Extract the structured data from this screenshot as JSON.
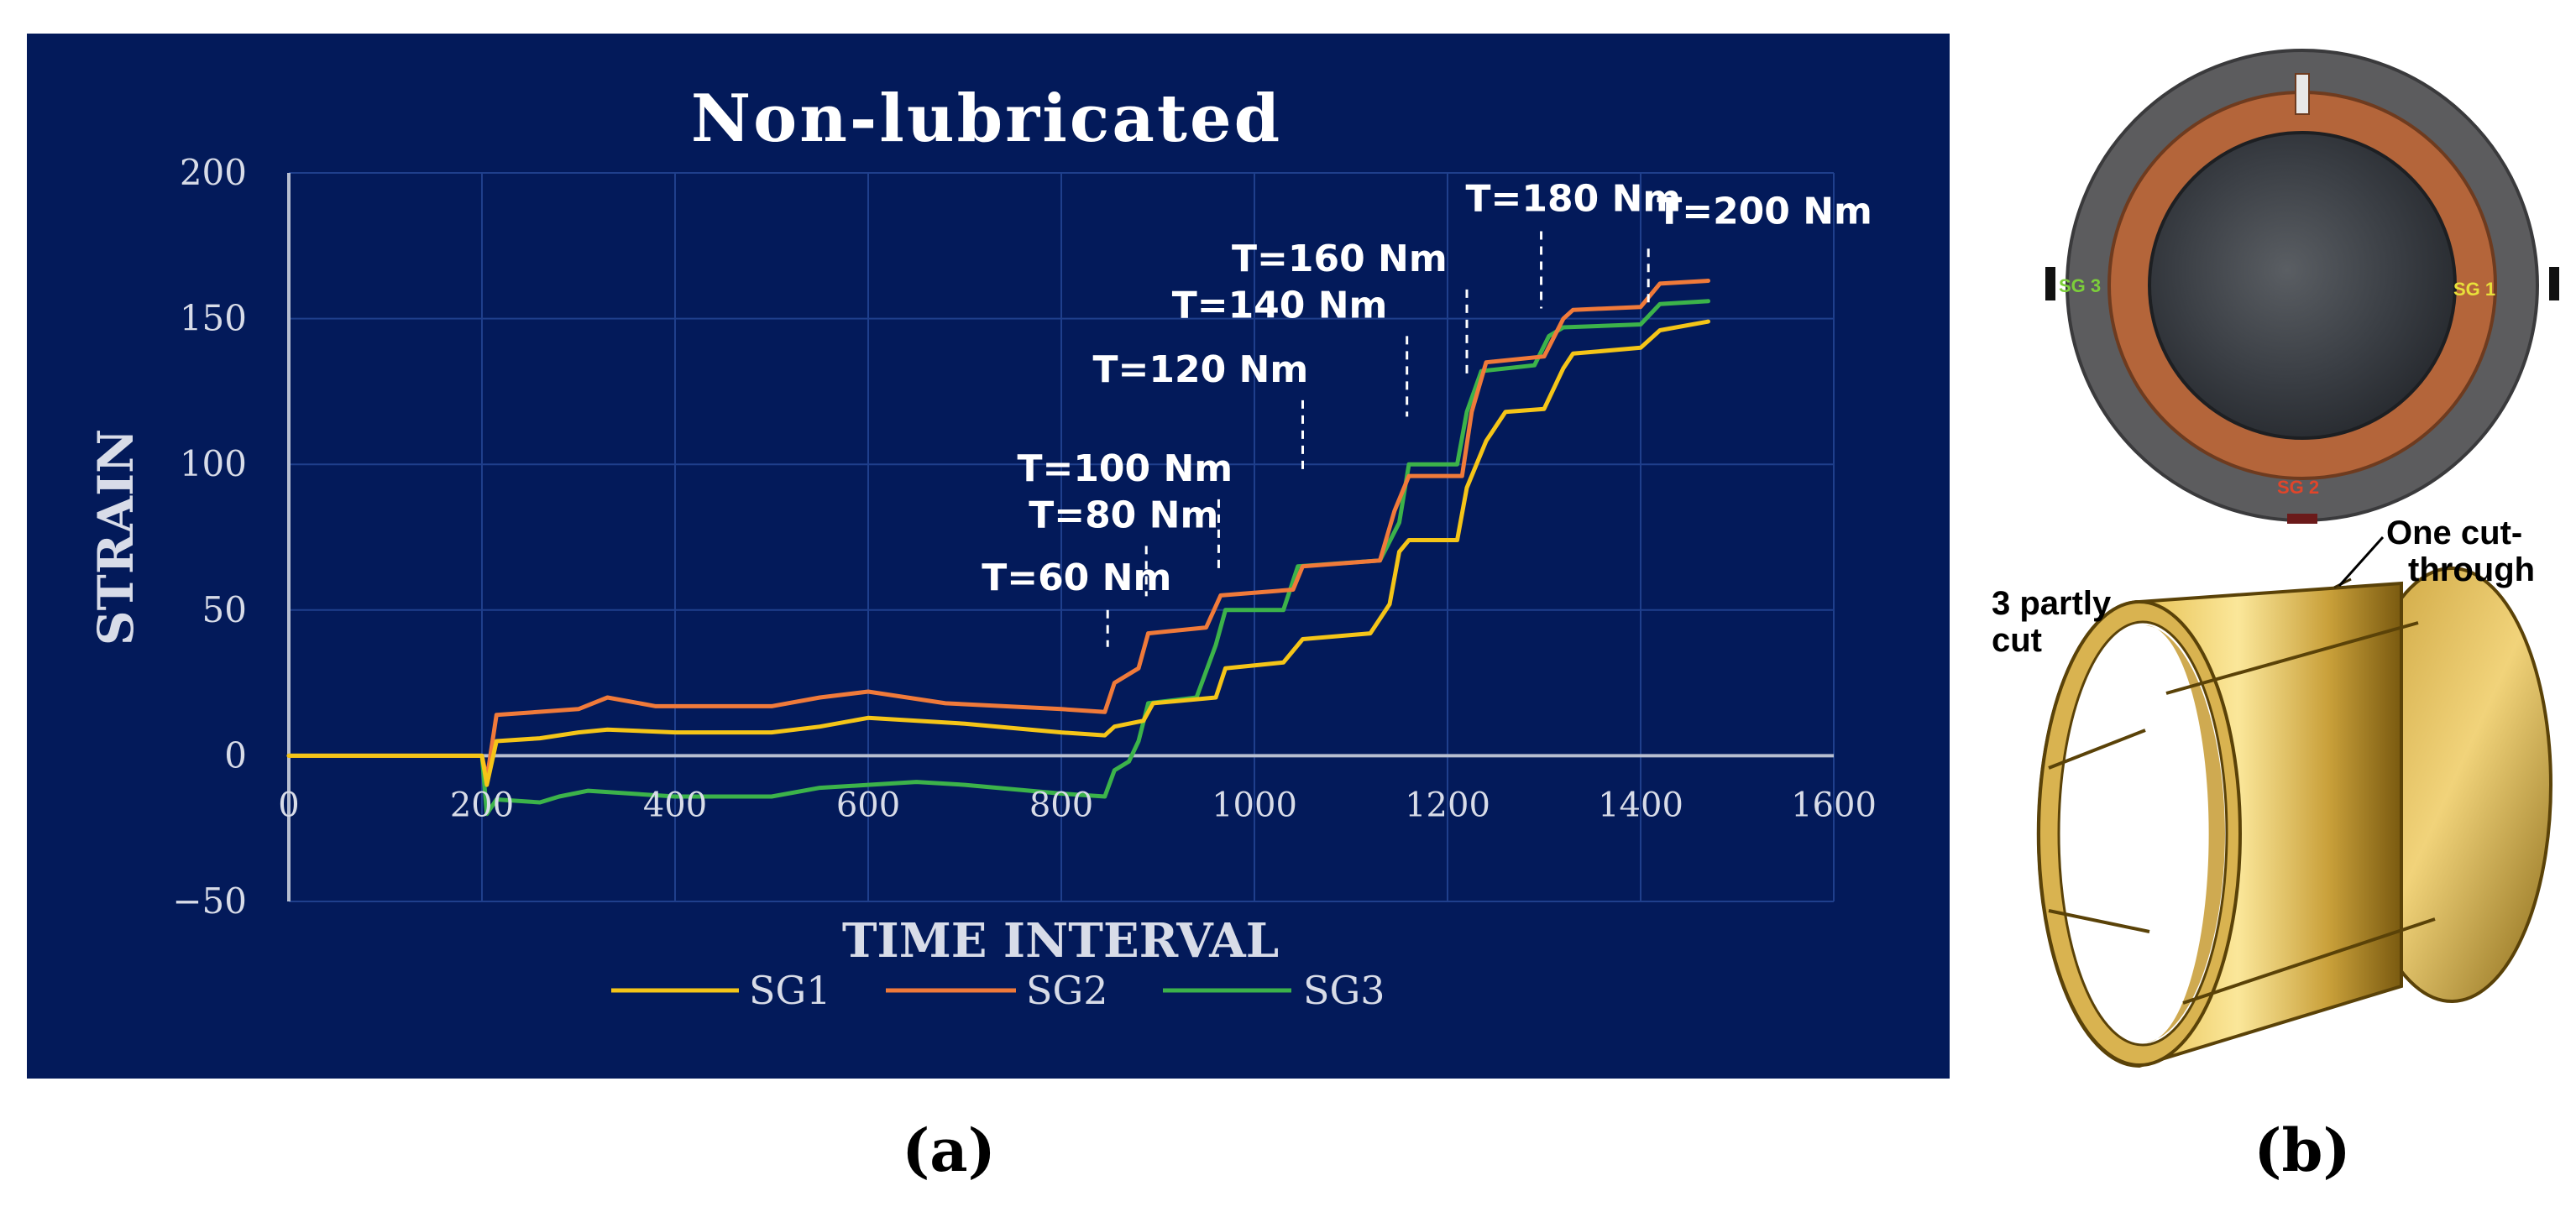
{
  "chart_data": {
    "type": "line",
    "title": "Non-lubricated",
    "xlabel": "TIME INTERVAL",
    "ylabel": "STRAIN",
    "xlim": [
      0,
      1600
    ],
    "ylim": [
      -50,
      200
    ],
    "x_ticks": [
      0,
      200,
      400,
      600,
      800,
      1000,
      1200,
      1400,
      1600
    ],
    "y_ticks": [
      -50,
      0,
      50,
      100,
      150,
      200
    ],
    "grid": true,
    "legend_position": "bottom",
    "series": [
      {
        "name": "SG1",
        "color": "#f5c518",
        "points": [
          [
            0,
            0
          ],
          [
            200,
            0
          ],
          [
            205,
            -10
          ],
          [
            215,
            5
          ],
          [
            260,
            6
          ],
          [
            300,
            8
          ],
          [
            330,
            9
          ],
          [
            400,
            8
          ],
          [
            500,
            8
          ],
          [
            550,
            10
          ],
          [
            600,
            13
          ],
          [
            700,
            11
          ],
          [
            800,
            8
          ],
          [
            845,
            7
          ],
          [
            855,
            10
          ],
          [
            885,
            12
          ],
          [
            895,
            18
          ],
          [
            960,
            20
          ],
          [
            970,
            30
          ],
          [
            1030,
            32
          ],
          [
            1050,
            40
          ],
          [
            1120,
            42
          ],
          [
            1140,
            52
          ],
          [
            1150,
            70
          ],
          [
            1160,
            74
          ],
          [
            1210,
            74
          ],
          [
            1220,
            92
          ],
          [
            1240,
            108
          ],
          [
            1260,
            118
          ],
          [
            1300,
            119
          ],
          [
            1320,
            133
          ],
          [
            1330,
            138
          ],
          [
            1400,
            140
          ],
          [
            1420,
            146
          ],
          [
            1470,
            149
          ]
        ]
      },
      {
        "name": "SG2",
        "color": "#f07a3a",
        "points": [
          [
            0,
            0
          ],
          [
            200,
            0
          ],
          [
            205,
            -8
          ],
          [
            215,
            14
          ],
          [
            300,
            16
          ],
          [
            330,
            20
          ],
          [
            380,
            17
          ],
          [
            450,
            17
          ],
          [
            500,
            17
          ],
          [
            550,
            20
          ],
          [
            600,
            22
          ],
          [
            680,
            18
          ],
          [
            800,
            16
          ],
          [
            845,
            15
          ],
          [
            855,
            25
          ],
          [
            880,
            30
          ],
          [
            890,
            42
          ],
          [
            950,
            44
          ],
          [
            965,
            55
          ],
          [
            1040,
            57
          ],
          [
            1050,
            65
          ],
          [
            1130,
            67
          ],
          [
            1145,
            84
          ],
          [
            1160,
            96
          ],
          [
            1215,
            96
          ],
          [
            1225,
            118
          ],
          [
            1240,
            135
          ],
          [
            1300,
            137
          ],
          [
            1320,
            150
          ],
          [
            1330,
            153
          ],
          [
            1400,
            154
          ],
          [
            1420,
            162
          ],
          [
            1470,
            163
          ]
        ]
      },
      {
        "name": "SG3",
        "color": "#3cb34a",
        "points": [
          [
            0,
            0
          ],
          [
            200,
            0
          ],
          [
            205,
            -20
          ],
          [
            215,
            -15
          ],
          [
            260,
            -16
          ],
          [
            280,
            -14
          ],
          [
            310,
            -12
          ],
          [
            400,
            -14
          ],
          [
            500,
            -14
          ],
          [
            550,
            -11
          ],
          [
            600,
            -10
          ],
          [
            650,
            -9
          ],
          [
            700,
            -10
          ],
          [
            800,
            -13
          ],
          [
            845,
            -14
          ],
          [
            855,
            -5
          ],
          [
            870,
            -2
          ],
          [
            880,
            5
          ],
          [
            890,
            18
          ],
          [
            940,
            20
          ],
          [
            960,
            38
          ],
          [
            970,
            50
          ],
          [
            1030,
            50
          ],
          [
            1045,
            65
          ],
          [
            1130,
            67
          ],
          [
            1150,
            80
          ],
          [
            1160,
            100
          ],
          [
            1210,
            100
          ],
          [
            1220,
            118
          ],
          [
            1235,
            132
          ],
          [
            1290,
            134
          ],
          [
            1305,
            144
          ],
          [
            1320,
            147
          ],
          [
            1400,
            148
          ],
          [
            1420,
            155
          ],
          [
            1470,
            156
          ]
        ]
      }
    ],
    "annotations": [
      {
        "text": "T=60 Nm",
        "x": 848,
        "y": 50
      },
      {
        "text": "T=80 Nm",
        "x": 888,
        "y": 72
      },
      {
        "text": "T=100 Nm",
        "x": 963,
        "y": 88
      },
      {
        "text": "T=120 Nm",
        "x": 1050,
        "y": 122
      },
      {
        "text": "T=140 Nm",
        "x": 1158,
        "y": 144
      },
      {
        "text": "T=160 Nm",
        "x": 1220,
        "y": 160
      },
      {
        "text": "T=180 Nm",
        "x": 1297,
        "y": 180
      },
      {
        "text": "T=200 Nm",
        "x": 1408,
        "y": 174
      }
    ]
  },
  "legend": [
    "SG1",
    "SG2",
    "SG3"
  ],
  "panel_labels": {
    "a": "(a)",
    "b": "(b)"
  },
  "photo": {
    "sensor_labels": [
      "SG 3",
      "SG 1",
      "SG 2"
    ],
    "callouts": {
      "partly_cut_line1": "3 partly",
      "partly_cut_line2": "cut",
      "cut_through_line1": "One cut-",
      "cut_through_line2": "through"
    }
  },
  "colors": {
    "panel_bg": "#031a5a",
    "grid": "#1f3f8c",
    "axis": "#b8bfd0",
    "text": "#ffffff"
  }
}
